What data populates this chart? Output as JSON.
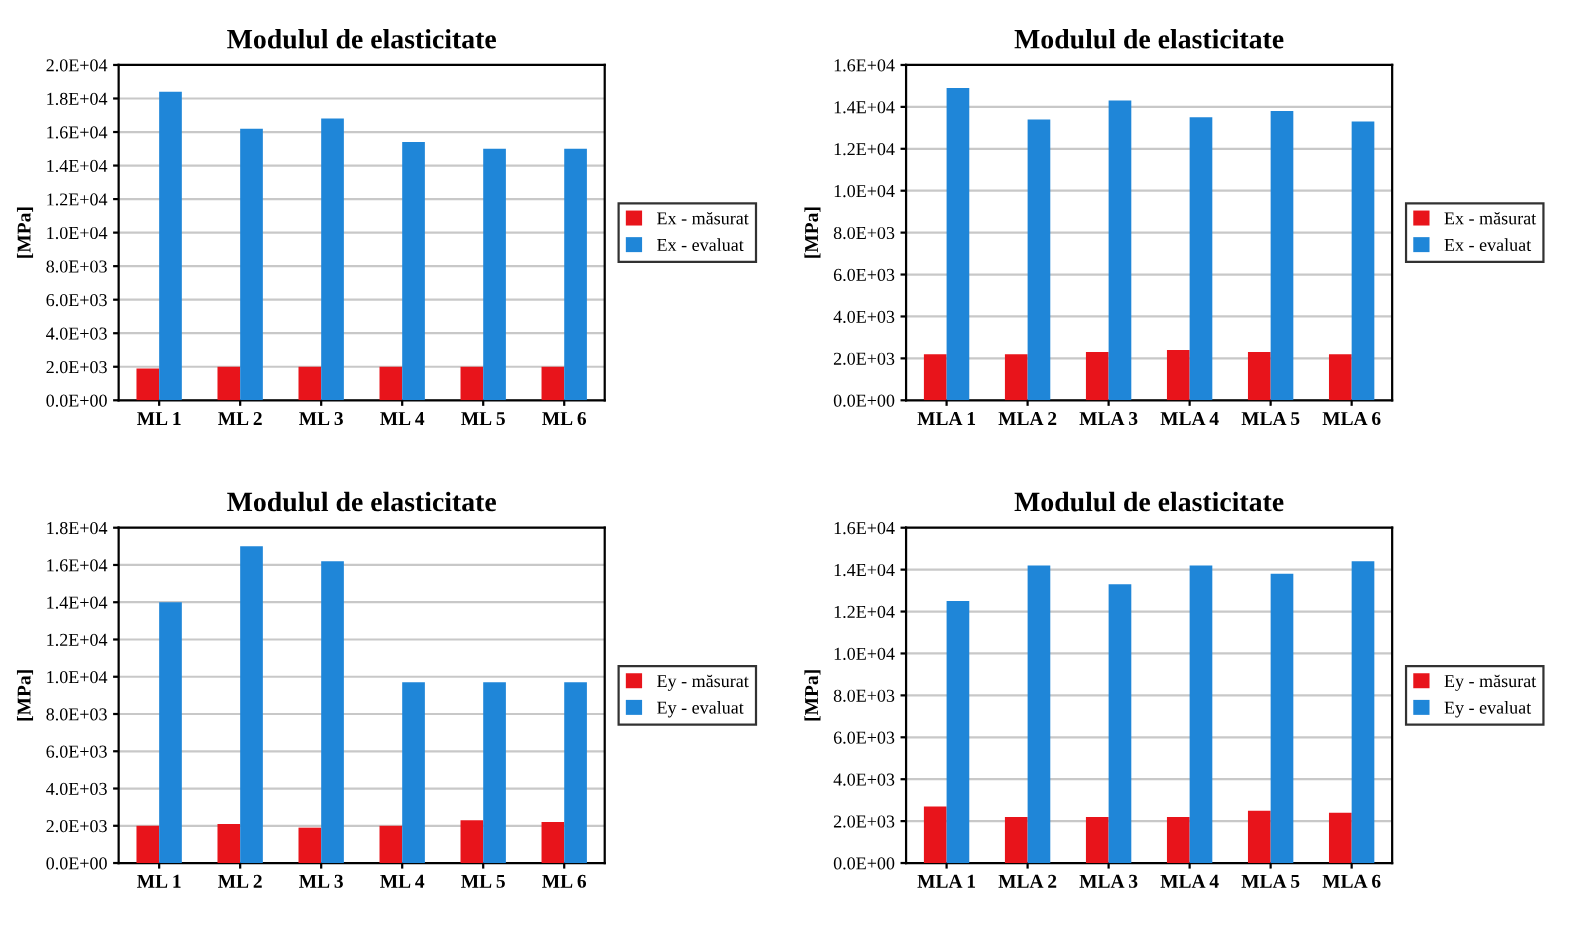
{
  "chart_data": [
    {
      "type": "bar",
      "title": "Modulul de elasticitate",
      "ylabel": "[MPa]",
      "categories": [
        "ML 1",
        "ML 2",
        "ML 3",
        "ML 4",
        "ML 5",
        "ML 6"
      ],
      "series": [
        {
          "name": "Ex - măsurat",
          "color": "#e8141b",
          "values": [
            1900,
            2000,
            2000,
            2000,
            2000,
            2000
          ]
        },
        {
          "name": "Ex - evaluat",
          "color": "#1f86d8",
          "values": [
            18400,
            16200,
            16800,
            15400,
            15000,
            15000
          ]
        }
      ],
      "ylim": [
        0,
        20000
      ],
      "yticks": [
        {
          "value": 0,
          "label": "0.0E+00"
        },
        {
          "value": 2000,
          "label": "2.0E+03"
        },
        {
          "value": 4000,
          "label": "4.0E+03"
        },
        {
          "value": 6000,
          "label": "6.0E+03"
        },
        {
          "value": 8000,
          "label": "8.0E+03"
        },
        {
          "value": 10000,
          "label": "1.0E+04"
        },
        {
          "value": 12000,
          "label": "1.2E+04"
        },
        {
          "value": 14000,
          "label": "1.4E+04"
        },
        {
          "value": 16000,
          "label": "1.6E+04"
        },
        {
          "value": 18000,
          "label": "1.8E+04"
        },
        {
          "value": 20000,
          "label": "2.0E+04"
        }
      ],
      "grid": "y",
      "legend": "right"
    },
    {
      "type": "bar",
      "title": "Modulul de elasticitate",
      "ylabel": "[MPa]",
      "categories": [
        "MLA 1",
        "MLA 2",
        "MLA 3",
        "MLA 4",
        "MLA 5",
        "MLA 6"
      ],
      "series": [
        {
          "name": "Ex - măsurat",
          "color": "#e8141b",
          "values": [
            2200,
            2200,
            2300,
            2400,
            2300,
            2200
          ]
        },
        {
          "name": "Ex - evaluat",
          "color": "#1f86d8",
          "values": [
            14900,
            13400,
            14300,
            13500,
            13800,
            13300
          ]
        }
      ],
      "ylim": [
        0,
        16000
      ],
      "yticks": [
        {
          "value": 0,
          "label": "0.0E+00"
        },
        {
          "value": 2000,
          "label": "2.0E+03"
        },
        {
          "value": 4000,
          "label": "4.0E+03"
        },
        {
          "value": 6000,
          "label": "6.0E+03"
        },
        {
          "value": 8000,
          "label": "8.0E+03"
        },
        {
          "value": 10000,
          "label": "1.0E+04"
        },
        {
          "value": 12000,
          "label": "1.2E+04"
        },
        {
          "value": 14000,
          "label": "1.4E+04"
        },
        {
          "value": 16000,
          "label": "1.6E+04"
        }
      ],
      "grid": "y",
      "legend": "right"
    },
    {
      "type": "bar",
      "title": "Modulul de elasticitate",
      "ylabel": "[MPa]",
      "categories": [
        "ML 1",
        "ML 2",
        "ML 3",
        "ML 4",
        "ML 5",
        "ML 6"
      ],
      "series": [
        {
          "name": "Ey - măsurat",
          "color": "#e8141b",
          "values": [
            2000,
            2100,
            1900,
            2000,
            2300,
            2200
          ]
        },
        {
          "name": "Ey - evaluat",
          "color": "#1f86d8",
          "values": [
            14000,
            17000,
            16200,
            9700,
            9700,
            9700
          ]
        }
      ],
      "ylim": [
        0,
        18000
      ],
      "yticks": [
        {
          "value": 0,
          "label": "0.0E+00"
        },
        {
          "value": 2000,
          "label": "2.0E+03"
        },
        {
          "value": 4000,
          "label": "4.0E+03"
        },
        {
          "value": 6000,
          "label": "6.0E+03"
        },
        {
          "value": 8000,
          "label": "8.0E+03"
        },
        {
          "value": 10000,
          "label": "1.0E+04"
        },
        {
          "value": 12000,
          "label": "1.2E+04"
        },
        {
          "value": 14000,
          "label": "1.4E+04"
        },
        {
          "value": 16000,
          "label": "1.6E+04"
        },
        {
          "value": 18000,
          "label": "1.8E+04"
        }
      ],
      "grid": "y",
      "legend": "right"
    },
    {
      "type": "bar",
      "title": "Modulul de elasticitate",
      "ylabel": "[MPa]",
      "categories": [
        "MLA 1",
        "MLA 2",
        "MLA 3",
        "MLA 4",
        "MLA 5",
        "MLA 6"
      ],
      "series": [
        {
          "name": "Ey - măsurat",
          "color": "#e8141b",
          "values": [
            2700,
            2200,
            2200,
            2200,
            2500,
            2400
          ]
        },
        {
          "name": "Ey - evaluat",
          "color": "#1f86d8",
          "values": [
            12500,
            14200,
            13300,
            14200,
            13800,
            14400
          ]
        }
      ],
      "ylim": [
        0,
        16000
      ],
      "yticks": [
        {
          "value": 0,
          "label": "0.0E+00"
        },
        {
          "value": 2000,
          "label": "2.0E+03"
        },
        {
          "value": 4000,
          "label": "4.0E+03"
        },
        {
          "value": 6000,
          "label": "6.0E+03"
        },
        {
          "value": 8000,
          "label": "8.0E+03"
        },
        {
          "value": 10000,
          "label": "1.0E+04"
        },
        {
          "value": 12000,
          "label": "1.2E+04"
        },
        {
          "value": 14000,
          "label": "1.4E+04"
        },
        {
          "value": 16000,
          "label": "1.6E+04"
        }
      ],
      "grid": "y",
      "legend": "right"
    }
  ]
}
